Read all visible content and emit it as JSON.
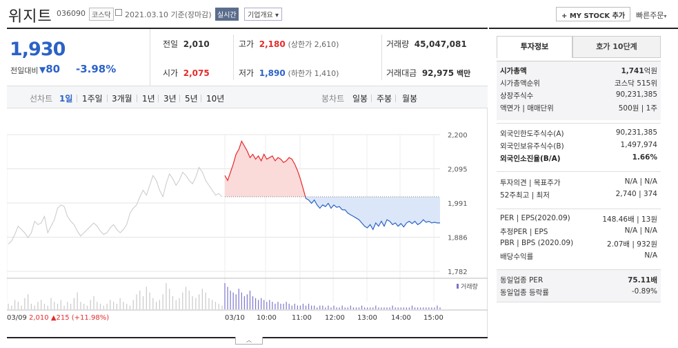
{
  "header": {
    "name": "위지트",
    "code": "036090",
    "market": "코스닥",
    "date": "2021.03.10",
    "date_suffix": "기준(장마감)",
    "realtime": "실시간",
    "overview": "기업개요",
    "overview_arrow": "▾",
    "mystock": "+ MY STOCK 추가",
    "quick_order": "빠른주문",
    "quick_arrow": "▾"
  },
  "price": {
    "current": "1,930",
    "change_label": "전일대비",
    "change_arrow": "▼",
    "change": "80",
    "change_pct": "-3.98%"
  },
  "summary": {
    "prev_label": "전일",
    "prev": "2,010",
    "high_label": "고가",
    "high": "2,180",
    "upper_limit": "(상한가 2,610)",
    "volume_label": "거래량",
    "volume": "45,047,081",
    "open_label": "시가",
    "open": "2,075",
    "low_label": "저가",
    "low": "1,890",
    "lower_limit": "(하한가 1,410)",
    "amount_label": "거래대금",
    "amount": "92,975",
    "amount_unit": "백만"
  },
  "period_bar": {
    "line_label": "선차트",
    "line_periods": [
      "1일",
      "1주일",
      "3개월",
      "1년",
      "3년",
      "5년",
      "10년"
    ],
    "candle_label": "봉차트",
    "candle_periods": [
      "일봉",
      "주봉",
      "월봉"
    ]
  },
  "chart_data": {
    "type": "line",
    "y_ticks": [
      "2,200",
      "2,095",
      "1,991",
      "1,886",
      "1,782"
    ],
    "ylim": [
      1782,
      2200
    ],
    "reference_price": 2010,
    "volume_label": "거래량",
    "x_ticks": [
      "03/09",
      "03/10",
      "10:00",
      "11:00",
      "12:00",
      "13:00",
      "14:00",
      "15:00"
    ],
    "prev_day_summary": {
      "label": "03/09",
      "price": "2,010",
      "arrow": "▲",
      "change": "215",
      "pct": "(+11.98%)"
    },
    "prev_day_series": [
      1865,
      1875,
      1895,
      1920,
      1910,
      1900,
      1885,
      1900,
      1935,
      1925,
      1930,
      1950,
      1900,
      1920,
      1940,
      1975,
      1985,
      1980,
      1950,
      1935,
      1925,
      1905,
      1890,
      1900,
      1910,
      1920,
      1930,
      1920,
      1905,
      1895,
      1900,
      1915,
      1925,
      1910,
      1900,
      1910,
      1925,
      1960,
      1975,
      1985,
      2010,
      2030,
      2015,
      2045,
      2075,
      2060,
      2030,
      2010,
      2050,
      2080,
      2065,
      2045,
      2060,
      2085,
      2075,
      2060,
      2050,
      2070,
      2100,
      2085,
      2060,
      2045,
      2030,
      2015,
      2020,
      2010
    ],
    "today_series": [
      2075,
      2060,
      2085,
      2110,
      2140,
      2155,
      2180,
      2165,
      2150,
      2130,
      2140,
      2125,
      2135,
      2120,
      2140,
      2125,
      2130,
      2135,
      2120,
      2130,
      2125,
      2115,
      2120,
      2130,
      2125,
      2110,
      2090,
      2065,
      2035,
      2005,
      2000,
      1990,
      2000,
      1985,
      1975,
      1985,
      1980,
      1990,
      1975,
      1985,
      1978,
      1980,
      1970,
      1970,
      1960,
      1955,
      1950,
      1945,
      1940,
      1930,
      1920,
      1915,
      1925,
      1910,
      1930,
      1920,
      1935,
      1920,
      1940,
      1935,
      1925,
      1930,
      1920,
      1928,
      1918,
      1930,
      1935,
      1928,
      1935,
      1925,
      1930,
      1940,
      1932,
      1935,
      1930,
      1932,
      1930,
      1930
    ],
    "prev_day_volume": [
      3,
      2,
      5,
      4,
      2,
      6,
      8,
      3,
      2,
      4,
      5,
      3,
      2,
      6,
      4,
      3,
      5,
      2,
      4,
      3,
      6,
      9,
      4,
      3,
      2,
      5,
      7,
      4,
      3,
      2,
      3,
      5,
      4,
      3,
      6,
      4,
      3,
      2,
      5,
      8,
      10,
      7,
      12,
      9,
      6,
      4,
      5,
      8,
      14,
      11,
      7,
      5,
      6,
      9,
      12,
      10,
      7,
      6,
      8,
      11,
      9,
      6,
      5,
      4,
      3,
      2
    ],
    "today_volume": [
      14,
      12,
      10,
      9,
      8,
      11,
      9,
      7,
      8,
      10,
      7,
      6,
      5,
      6,
      5,
      4,
      5,
      4,
      3,
      4,
      3,
      3,
      4,
      3,
      2,
      3,
      2,
      2,
      3,
      2,
      3,
      2,
      2,
      1,
      2,
      2,
      1,
      2,
      1,
      2,
      1,
      1,
      2,
      1,
      1,
      2,
      1,
      1,
      1,
      2,
      1,
      1,
      1,
      1,
      2,
      1,
      1,
      1,
      1,
      1,
      2,
      1,
      1,
      1,
      1,
      1,
      1,
      2,
      1,
      1,
      1,
      1,
      1,
      1,
      1,
      1,
      2,
      1
    ]
  },
  "info_panel": {
    "tab_active": "투자정보",
    "tab_other": "호가 10단계",
    "s1": [
      {
        "label": "시가총액",
        "value": "1,741",
        "unit": "억원"
      },
      {
        "label": "시가총액순위",
        "value": "코스닥 515위"
      },
      {
        "label": "상장주식수",
        "value": "90,231,385"
      },
      {
        "label": "액면가 | 매매단위",
        "value": "500원 | 1주"
      }
    ],
    "s2": [
      {
        "label": "외국인한도주식수(A)",
        "value": "90,231,385"
      },
      {
        "label": "외국인보유주식수(B)",
        "value": "1,497,974"
      },
      {
        "label": "외국인소진율(B/A)",
        "value": "1.66%"
      }
    ],
    "s3": [
      {
        "label": "투자의견 | 목표주가",
        "value": "N/A | N/A"
      },
      {
        "label": "52주최고 | 최저",
        "value": "2,740 | 374"
      }
    ],
    "s4": [
      {
        "label": "PER | EPS(2020.09)",
        "value": "148.46배 | 13원"
      },
      {
        "label": "추정PER | EPS",
        "value": "N/A | N/A"
      },
      {
        "label": "PBR | BPS (2020.09)",
        "value": "2.07배 | 932원"
      },
      {
        "label": "배당수익률",
        "value": "N/A"
      }
    ],
    "s5": [
      {
        "label": "동일업종 PER",
        "value": "75.11배"
      },
      {
        "label": "동일업종 등락률",
        "value": "-0.89%"
      }
    ],
    "colors": {
      "up": "#e42b2b",
      "down": "#2b62c7"
    }
  }
}
